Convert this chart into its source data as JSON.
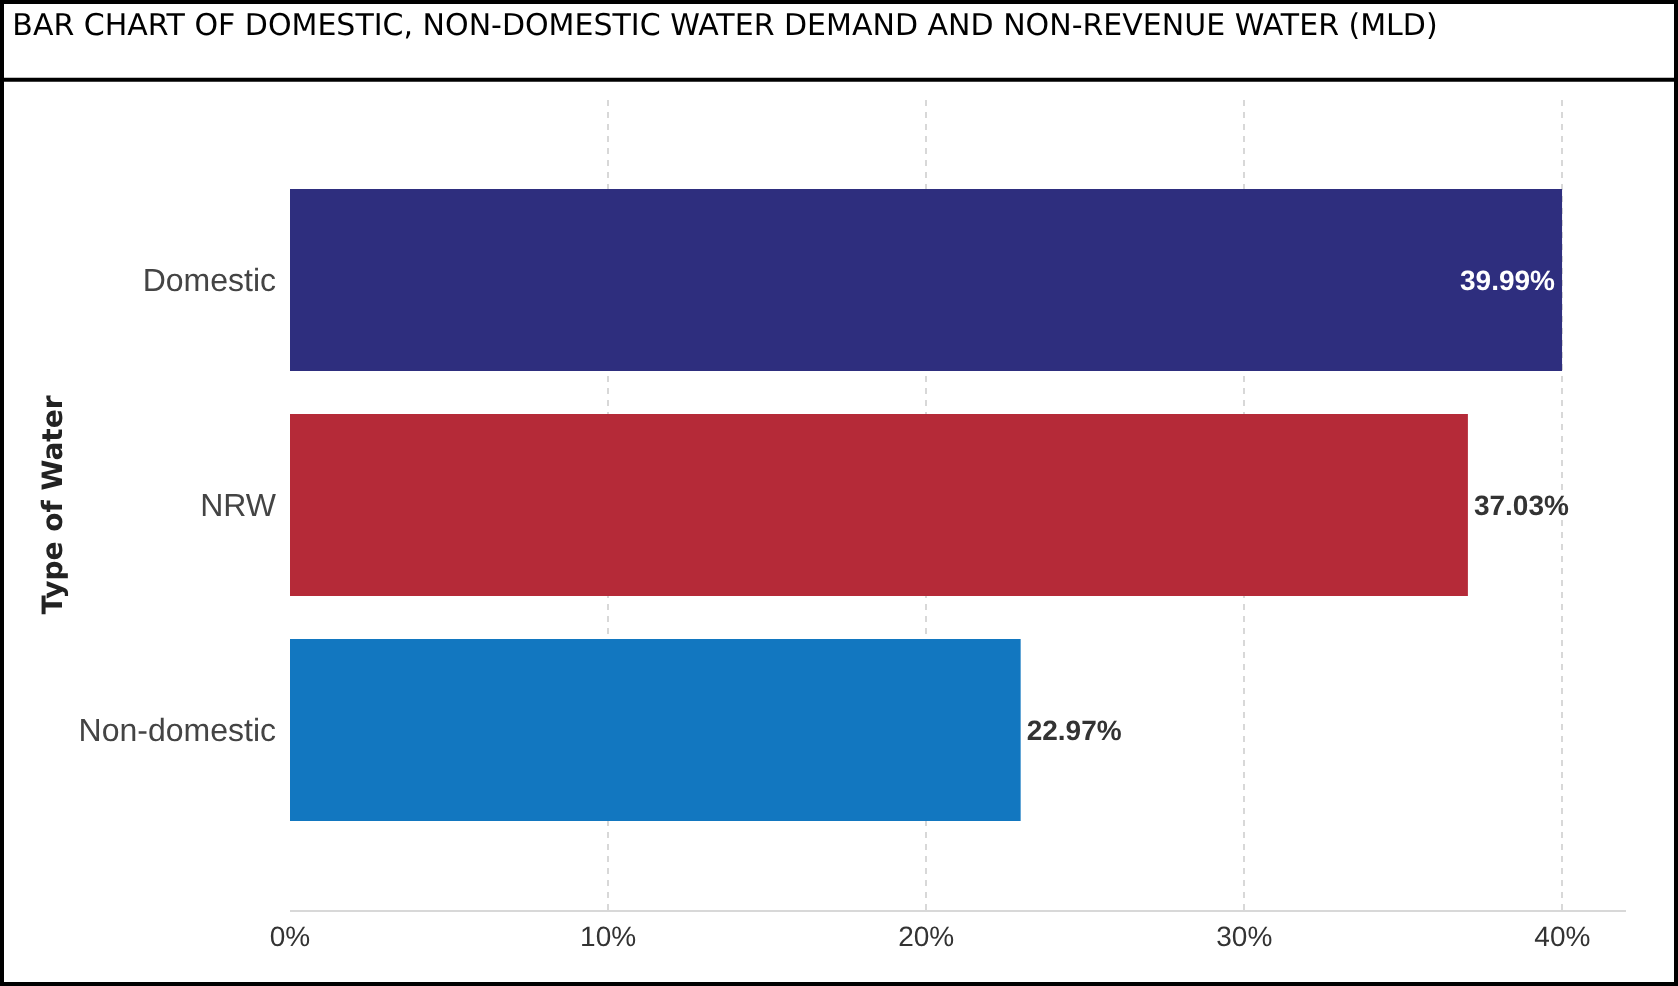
{
  "chart_data": {
    "type": "bar",
    "orientation": "horizontal",
    "title": "BAR CHART OF DOMESTIC, NON-DOMESTIC WATER DEMAND AND NON-REVENUE WATER (MLD)",
    "ylabel": "Type of Water",
    "categories": [
      "Domestic",
      "NRW",
      "Non-domestic"
    ],
    "values": [
      39.99,
      37.03,
      22.97
    ],
    "colors": [
      "#2e2e7e",
      "#b52a38",
      "#1277c0"
    ],
    "value_labels": [
      "39.99%",
      "37.03%",
      "22.97%"
    ],
    "xlim": [
      0,
      42
    ],
    "xticks": [
      {
        "value": 0,
        "label": "0%"
      },
      {
        "value": 10,
        "label": "10%"
      },
      {
        "value": 20,
        "label": "20%"
      },
      {
        "value": 30,
        "label": "30%"
      },
      {
        "value": 40,
        "label": "40%"
      }
    ],
    "grid": "x"
  }
}
